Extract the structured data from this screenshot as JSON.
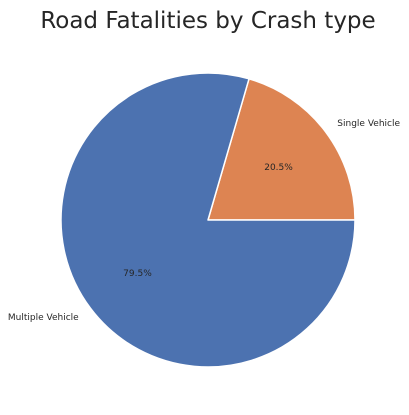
{
  "chart_data": {
    "type": "pie",
    "title": "Road Fatalities by Crash type",
    "slices": [
      {
        "label": "Single Vehicle",
        "value": 20.5,
        "pct_label": "20.5%",
        "color": "#dd8452"
      },
      {
        "label": "Multiple Vehicle",
        "value": 79.5,
        "pct_label": "79.5%",
        "color": "#4c72b0"
      }
    ],
    "start_angle_deg": 0,
    "direction": "counterclockwise",
    "edge_color": "#ffffff"
  }
}
